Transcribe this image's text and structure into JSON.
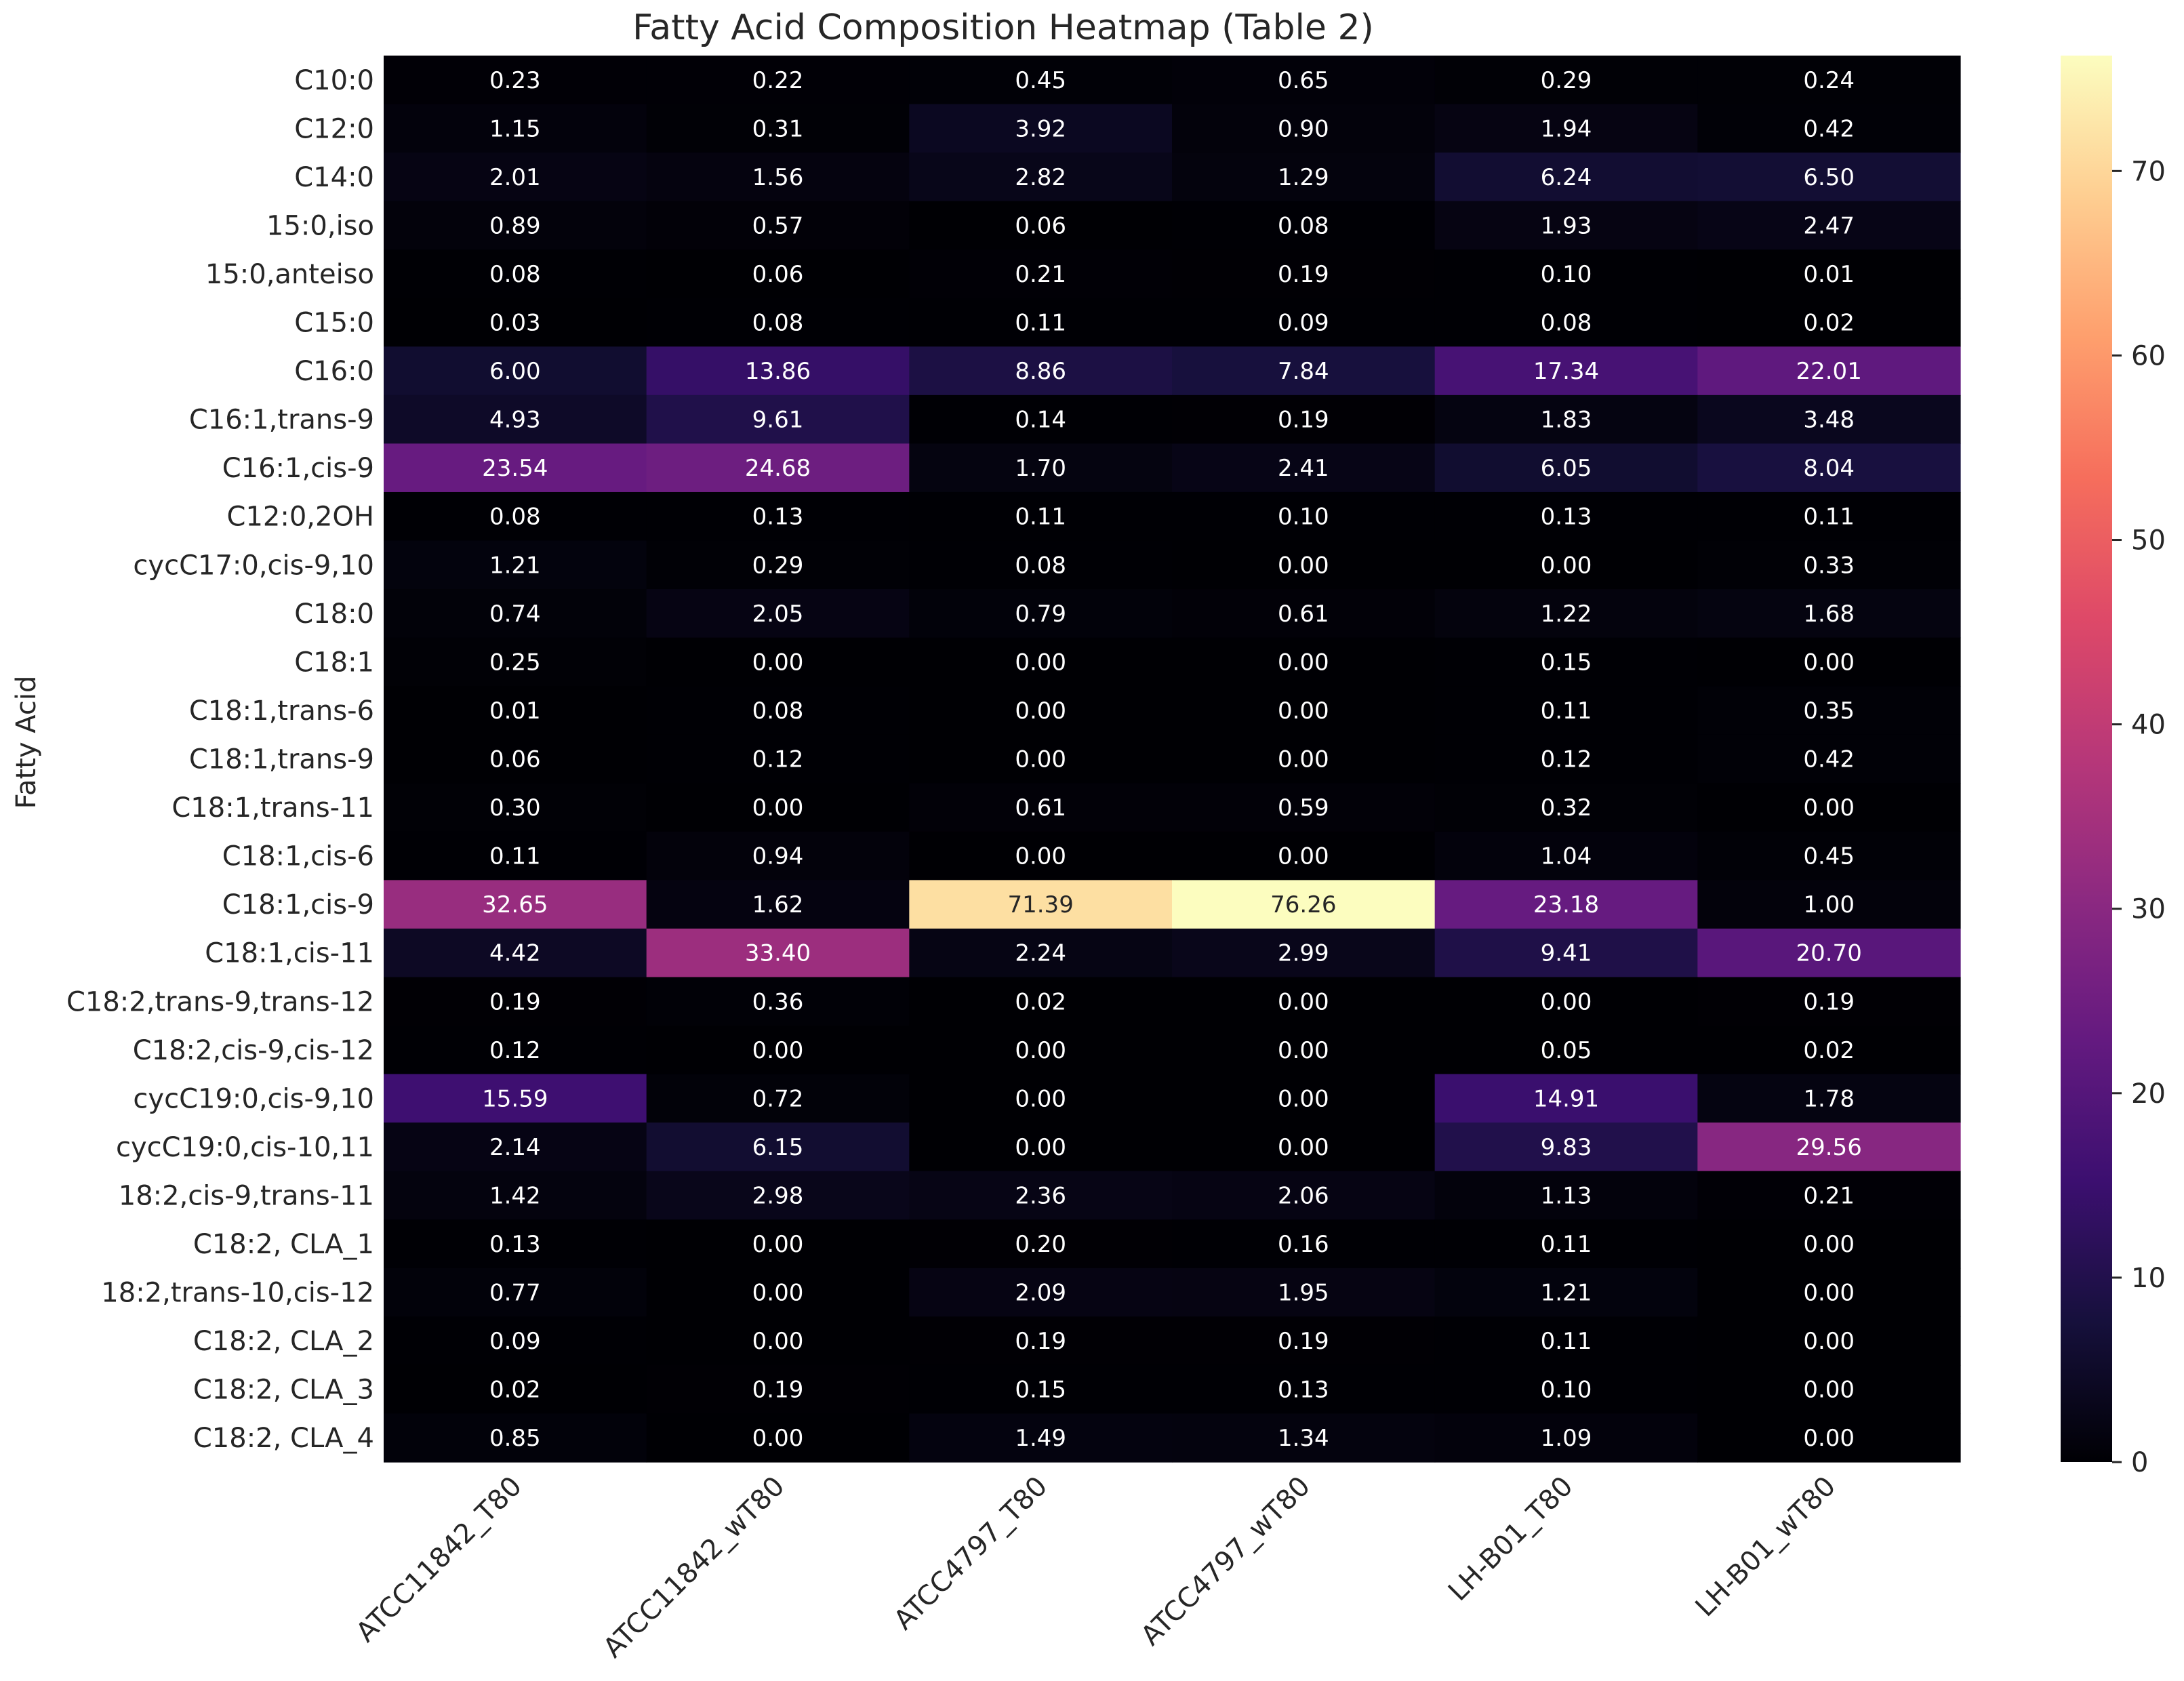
{
  "chart_data": {
    "type": "heatmap",
    "title": "Fatty Acid Composition Heatmap (Table 2)",
    "ylabel": "Fatty Acid",
    "xlabel": "",
    "colormap": "magma",
    "columns": [
      "ATCC11842_T80",
      "ATCC11842_wT80",
      "ATCC4797_T80",
      "ATCC4797_wT80",
      "LH-B01_T80",
      "LH-B01_wT80"
    ],
    "rows": [
      "C10:0",
      "C12:0",
      "C14:0",
      "15:0,iso",
      "15:0,anteiso",
      "C15:0",
      "C16:0",
      "C16:1,trans-9",
      "C16:1,cis-9",
      "C12:0,2OH",
      "cycC17:0,cis-9,10",
      "C18:0",
      "C18:1",
      "C18:1,trans-6",
      "C18:1,trans-9",
      "C18:1,trans-11",
      "C18:1,cis-6",
      "C18:1,cis-9",
      "C18:1,cis-11",
      "C18:2,trans-9,trans-12",
      "C18:2,cis-9,cis-12",
      "cycC19:0,cis-9,10",
      "cycC19:0,cis-10,11",
      "18:2,cis-9,trans-11",
      "C18:2, CLA_1",
      "18:2,trans-10,cis-12",
      "C18:2, CLA_2",
      "C18:2, CLA_3",
      "C18:2, CLA_4"
    ],
    "values": [
      [
        "0.23",
        "0.22",
        "0.45",
        "0.65",
        "0.29",
        "0.24"
      ],
      [
        "1.15",
        "0.31",
        "3.92",
        "0.90",
        "1.94",
        "0.42"
      ],
      [
        "2.01",
        "1.56",
        "2.82",
        "1.29",
        "6.24",
        "6.50"
      ],
      [
        "0.89",
        "0.57",
        "0.06",
        "0.08",
        "1.93",
        "2.47"
      ],
      [
        "0.08",
        "0.06",
        "0.21",
        "0.19",
        "0.10",
        "0.01"
      ],
      [
        "0.03",
        "0.08",
        "0.11",
        "0.09",
        "0.08",
        "0.02"
      ],
      [
        "6.00",
        "13.86",
        "8.86",
        "7.84",
        "17.34",
        "22.01"
      ],
      [
        "4.93",
        "9.61",
        "0.14",
        "0.19",
        "1.83",
        "3.48"
      ],
      [
        "23.54",
        "24.68",
        "1.70",
        "2.41",
        "6.05",
        "8.04"
      ],
      [
        "0.08",
        "0.13",
        "0.11",
        "0.10",
        "0.13",
        "0.11"
      ],
      [
        "1.21",
        "0.29",
        "0.08",
        "0.00",
        "0.00",
        "0.33"
      ],
      [
        "0.74",
        "2.05",
        "0.79",
        "0.61",
        "1.22",
        "1.68"
      ],
      [
        "0.25",
        "0.00",
        "0.00",
        "0.00",
        "0.15",
        "0.00"
      ],
      [
        "0.01",
        "0.08",
        "0.00",
        "0.00",
        "0.11",
        "0.35"
      ],
      [
        "0.06",
        "0.12",
        "0.00",
        "0.00",
        "0.12",
        "0.42"
      ],
      [
        "0.30",
        "0.00",
        "0.61",
        "0.59",
        "0.32",
        "0.00"
      ],
      [
        "0.11",
        "0.94",
        "0.00",
        "0.00",
        "1.04",
        "0.45"
      ],
      [
        "32.65",
        "1.62",
        "71.39",
        "76.26",
        "23.18",
        "1.00"
      ],
      [
        "4.42",
        "33.40",
        "2.24",
        "2.99",
        "9.41",
        "20.70"
      ],
      [
        "0.19",
        "0.36",
        "0.02",
        "0.00",
        "0.00",
        "0.19"
      ],
      [
        "0.12",
        "0.00",
        "0.00",
        "0.00",
        "0.05",
        "0.02"
      ],
      [
        "15.59",
        "0.72",
        "0.00",
        "0.00",
        "14.91",
        "1.78"
      ],
      [
        "2.14",
        "6.15",
        "0.00",
        "0.00",
        "9.83",
        "29.56"
      ],
      [
        "1.42",
        "2.98",
        "2.36",
        "2.06",
        "1.13",
        "0.21"
      ],
      [
        "0.13",
        "0.00",
        "0.20",
        "0.16",
        "0.11",
        "0.00"
      ],
      [
        "0.77",
        "0.00",
        "2.09",
        "1.95",
        "1.21",
        "0.00"
      ],
      [
        "0.09",
        "0.00",
        "0.19",
        "0.19",
        "0.11",
        "0.00"
      ],
      [
        "0.02",
        "0.19",
        "0.15",
        "0.13",
        "0.10",
        "0.00"
      ],
      [
        "0.85",
        "0.00",
        "1.49",
        "1.34",
        "1.09",
        "0.00"
      ]
    ],
    "colorbar": {
      "range": [
        0,
        76.26
      ],
      "ticks": [
        "0",
        "10",
        "20",
        "30",
        "40",
        "50",
        "60",
        "70"
      ]
    }
  }
}
